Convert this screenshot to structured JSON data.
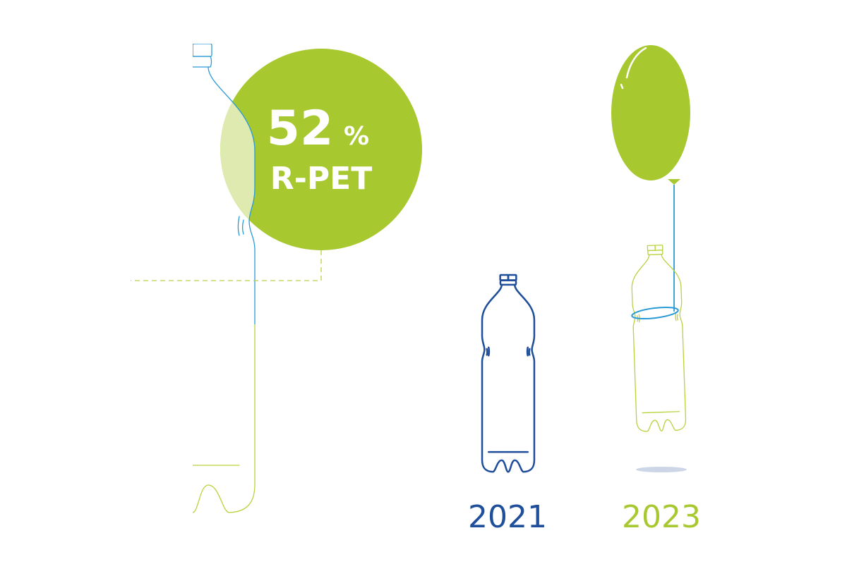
{
  "badge": {
    "value": "52",
    "unit": "%",
    "label": "R-PET"
  },
  "years": [
    "2021",
    "2023"
  ]
}
